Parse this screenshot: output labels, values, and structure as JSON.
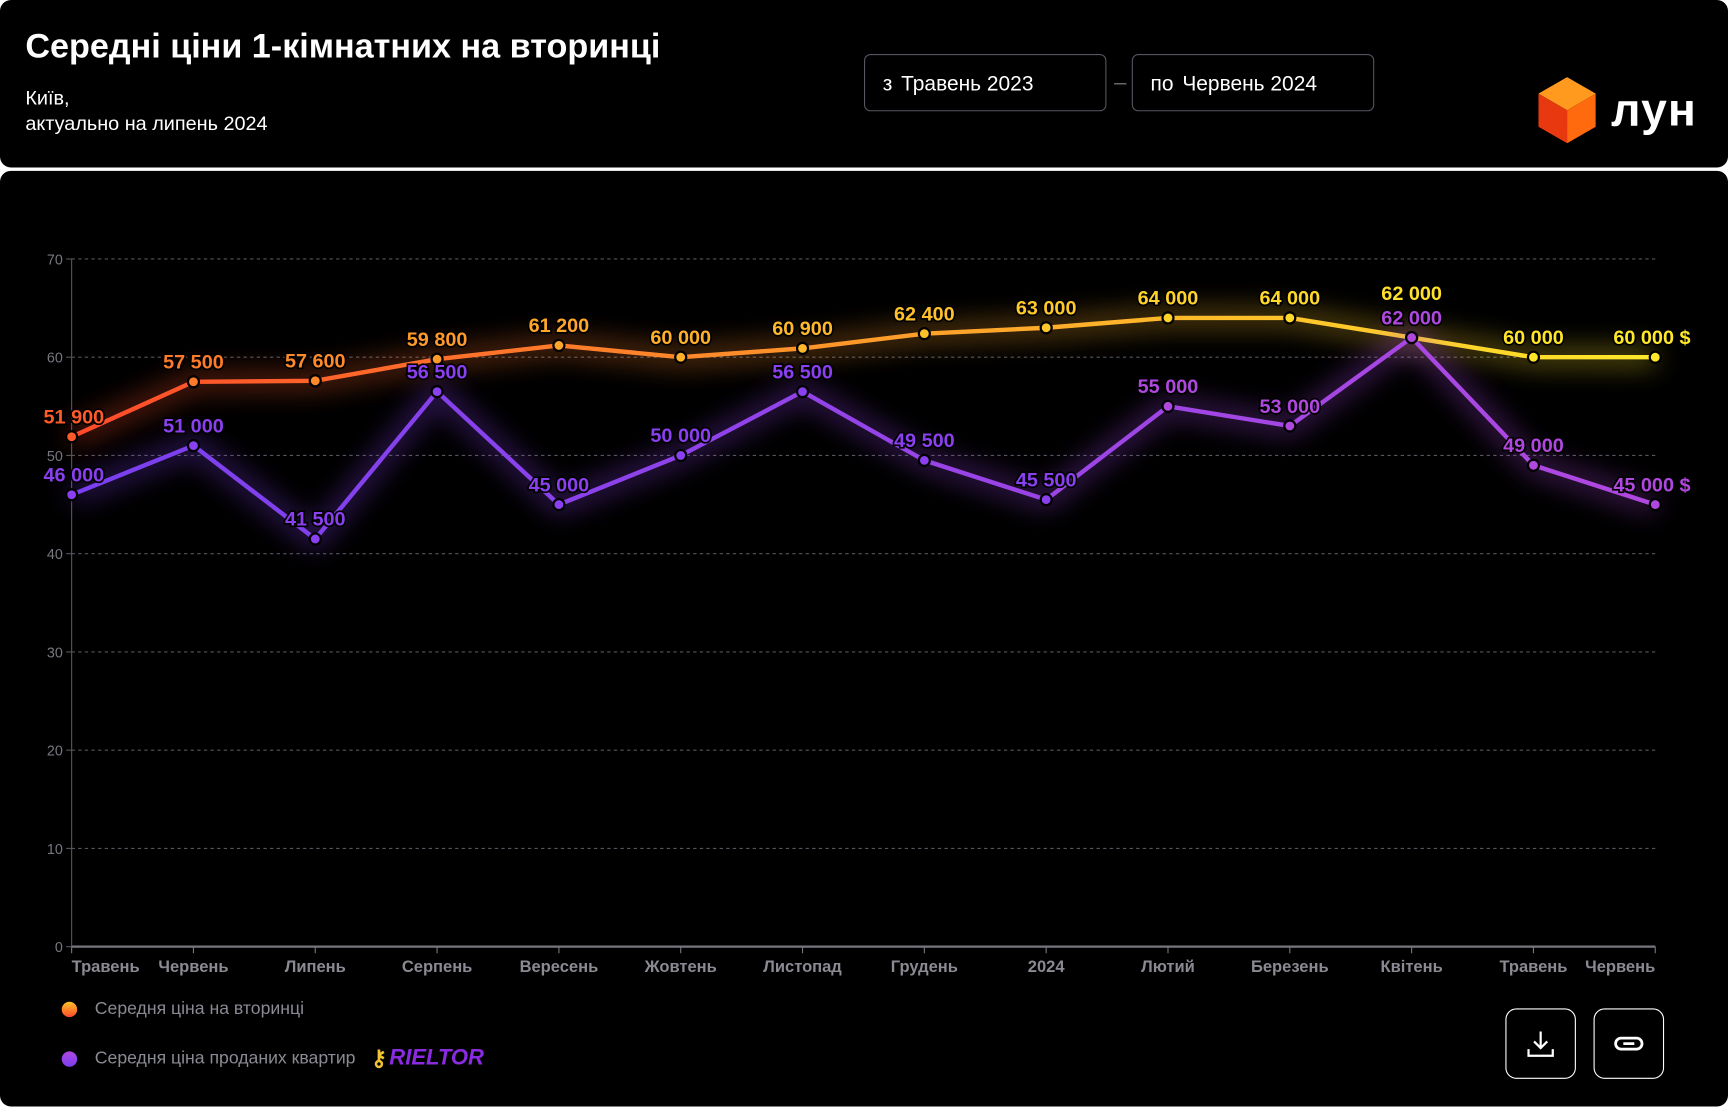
{
  "header": {
    "title": "Середні ціни 1-кімнатних на вторинці",
    "subtitle_line1": "Київ,",
    "subtitle_line2": "актуально на липень 2024",
    "from_prefix": "з",
    "from_value": "Травень 2023",
    "to_prefix": "по",
    "to_value": "Червень 2024",
    "separator": "–",
    "logo_text": "ЛУН"
  },
  "legend": {
    "series1": "Середня ціна на вторинці",
    "series2": "Середня ціна проданих квартир",
    "partner_logo": "RIELTOR"
  },
  "buttons": {
    "download": "download-icon",
    "link": "link-icon"
  },
  "colors": {
    "series1_start": "#ff4a2a",
    "series1_mid": "#ff9a2a",
    "series1_end": "#ffe82a",
    "series2": "#8a3ff0",
    "series2_end": "#b048e0",
    "background": "#000000"
  },
  "chart_data": {
    "type": "line",
    "categories": [
      "Травень",
      "Червень",
      "Липень",
      "Серпень",
      "Вересень",
      "Жовтень",
      "Листопад",
      "Грудень",
      "2024",
      "Лютий",
      "Березень",
      "Квітень",
      "Травень",
      "Червень"
    ],
    "ylim": [
      0,
      70000
    ],
    "yticks": [
      0,
      10000,
      20000,
      30000,
      40000,
      50000,
      60000,
      70000
    ],
    "ytick_labels": [
      "0",
      "10",
      "20",
      "30",
      "40",
      "50",
      "60",
      "70"
    ],
    "grid": true,
    "unit_suffix": " $",
    "series": [
      {
        "name": "Середня ціна на вторинці",
        "values": [
          51900,
          57500,
          57600,
          59800,
          61200,
          60000,
          60900,
          62400,
          63000,
          64000,
          64000,
          62000,
          60000,
          60000
        ],
        "labels": [
          "51 900",
          "57 500",
          "57 600",
          "59 800",
          "61 200",
          "60 000",
          "60 900",
          "62 400",
          "63 000",
          "64 000",
          "64 000",
          "62 000",
          "60 000",
          "60 000 $"
        ]
      },
      {
        "name": "Середня ціна проданих квартир",
        "values": [
          46000,
          51000,
          41500,
          56500,
          45000,
          50000,
          56500,
          49500,
          45500,
          55000,
          53000,
          62000,
          49000,
          45000
        ],
        "labels": [
          "46 000",
          "51 000",
          "41 500",
          "56 500",
          "45 000",
          "50 000",
          "56 500",
          "49 500",
          "45 500",
          "55 000",
          "53 000",
          "62 000",
          "49 000",
          "45 000 $"
        ]
      }
    ]
  }
}
